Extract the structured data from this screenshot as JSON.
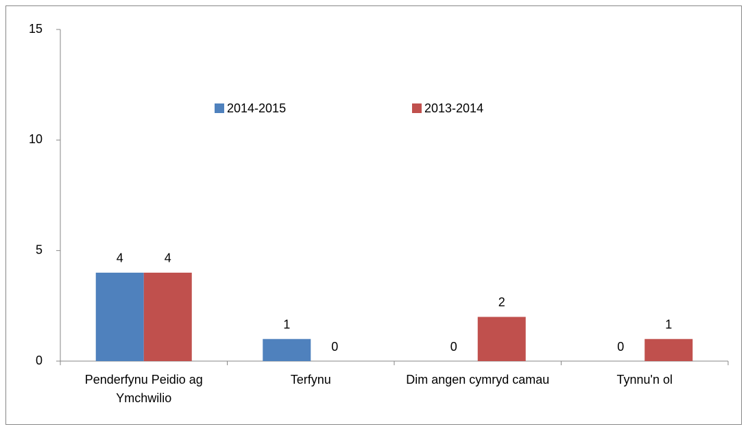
{
  "chart_data": {
    "type": "bar",
    "categories": [
      "Penderfynu Peidio ag Ymchwilio",
      "Terfynu",
      "Dim angen cymryd camau",
      "Tynnu'n ol"
    ],
    "series": [
      {
        "name": "2014-2015",
        "color": "#4f81bd",
        "values": [
          4,
          1,
          0,
          0
        ]
      },
      {
        "name": "2013-2014",
        "color": "#c0504d",
        "values": [
          4,
          0,
          2,
          1
        ]
      }
    ],
    "ylim": [
      0,
      15
    ],
    "yticks": [
      0,
      5,
      10,
      15
    ],
    "grid": false,
    "legend": "top"
  }
}
